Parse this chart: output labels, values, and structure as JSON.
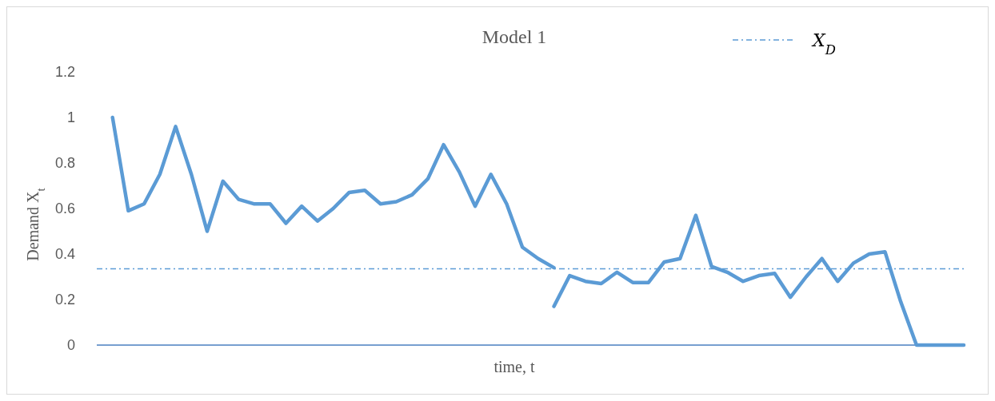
{
  "chart_data": {
    "type": "line",
    "title": "Model 1",
    "xlabel": "time, t",
    "ylabel": "Demand  X$_{t}$",
    "categories": [
      null,
      null,
      null,
      null,
      null,
      null,
      null,
      null,
      null,
      null,
      null,
      null,
      null,
      null,
      null,
      null,
      null,
      null,
      null,
      null,
      null,
      null,
      null,
      null,
      null,
      null,
      null,
      null,
      null,
      null,
      null,
      null,
      null,
      null,
      null,
      null,
      null,
      null,
      null,
      null,
      null,
      null,
      null,
      null,
      null,
      null,
      null,
      null,
      null,
      null,
      null,
      null,
      null,
      null,
      null
    ],
    "ylim": [
      0,
      1.2
    ],
    "yticks": [
      0,
      0.2,
      0.4,
      0.6,
      0.8,
      1,
      1.2
    ],
    "tick_labels": "y",
    "grid": false,
    "marker": "none",
    "line_style": "solid",
    "series": [
      {
        "color": "#5b9bd5",
        "values": [
          1.0,
          0.59,
          0.62,
          0.75,
          0.96,
          0.75,
          0.5,
          0.72,
          0.64,
          0.62,
          0.62,
          0.535,
          0.61,
          0.545,
          0.6,
          0.67,
          0.68,
          0.62,
          0.63,
          0.66,
          0.73,
          0.88,
          0.76,
          0.61,
          0.75,
          0.62,
          0.43,
          0.38,
          0.34,
          null,
          null,
          null,
          null,
          null,
          null,
          null,
          null,
          null,
          null,
          null,
          null,
          null,
          null,
          null,
          null,
          null,
          null,
          null,
          null,
          null,
          null,
          null,
          null,
          null,
          null
        ]
      },
      {
        "color": "#5b9bd5",
        "values": [
          null,
          null,
          null,
          null,
          null,
          null,
          null,
          null,
          null,
          null,
          null,
          null,
          null,
          null,
          null,
          null,
          null,
          null,
          null,
          null,
          null,
          null,
          null,
          null,
          null,
          null,
          null,
          null,
          0.17,
          0.305,
          0.28,
          0.27,
          0.32,
          0.275,
          0.275,
          0.365,
          0.38,
          0.57,
          0.345,
          0.32,
          0.28,
          0.305,
          0.315,
          0.21,
          0.3,
          0.38,
          0.28,
          0.36,
          0.4,
          0.41,
          0.19,
          0,
          0,
          0,
          0
        ]
      }
    ],
    "ref_lines": [
      {
        "axis": "y",
        "value": 0.335,
        "label": "X$_{D}$",
        "color": "#5b9bd5",
        "line_style": "dashed"
      }
    ]
  }
}
